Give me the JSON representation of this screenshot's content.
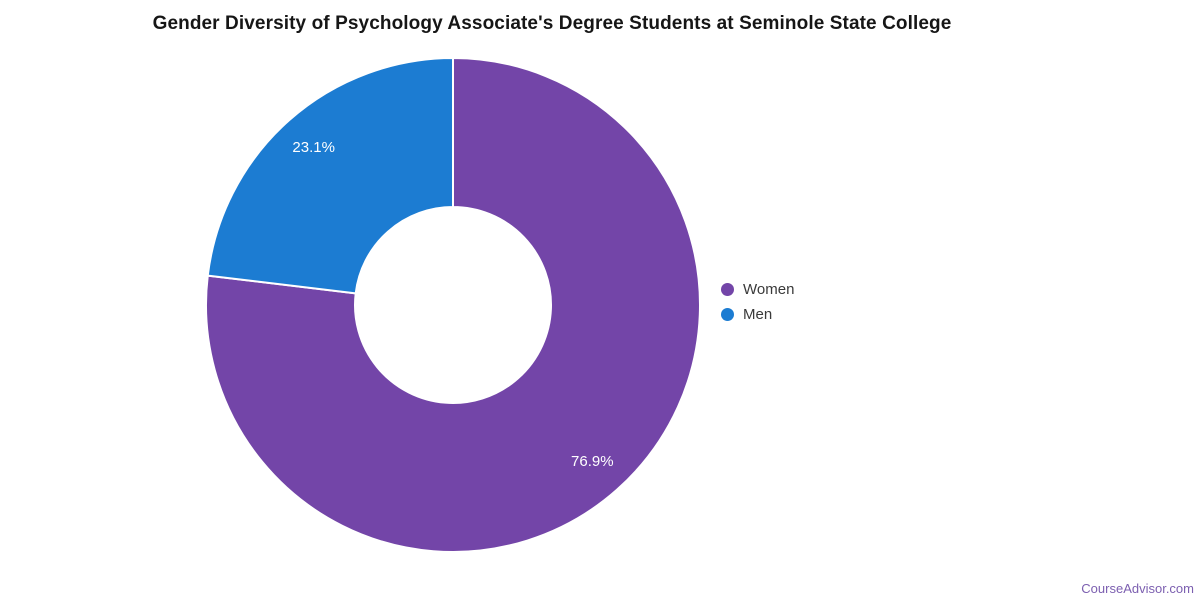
{
  "title": "Gender Diversity of Psychology Associate's Degree Students at Seminole State College",
  "chart_data": {
    "type": "pie",
    "subtype": "donut",
    "title": "Gender Diversity of Psychology Associate's Degree Students at Seminole State College",
    "start_angle_deg": 0,
    "direction": "clockwise",
    "center": {
      "x": 453,
      "y": 305
    },
    "outer_radius": 247,
    "inner_radius": 98,
    "label_radius_ratio": 0.85,
    "slice_border_color": "#ffffff",
    "value_label_color": "#ffffff",
    "legend_position": "right",
    "series": [
      {
        "name": "Women",
        "value": 76.9,
        "label": "76.9%",
        "color": "#7345a8"
      },
      {
        "name": "Men",
        "value": 23.1,
        "label": "23.1%",
        "color": "#1c7cd2"
      }
    ]
  },
  "legend": {
    "items": [
      {
        "label": "Women"
      },
      {
        "label": "Men"
      }
    ]
  },
  "footer": {
    "brand": "CourseAdvisor.com",
    "color": "#7c5fb0"
  }
}
